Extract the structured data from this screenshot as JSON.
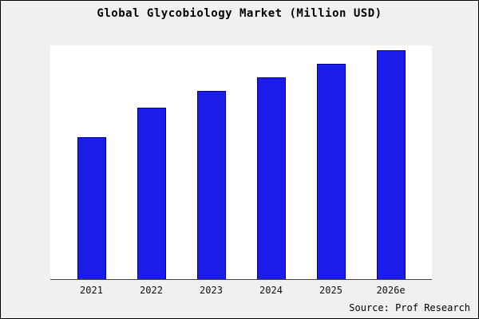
{
  "chart_data": {
    "type": "bar",
    "title": "Global Glycobiology Market (Million USD)",
    "categories": [
      "2021",
      "2022",
      "2023",
      "2024",
      "2025",
      "2026e"
    ],
    "values": [
      62,
      75,
      82,
      88,
      94,
      100
    ],
    "ylim": [
      0,
      102
    ],
    "xlabel": "",
    "ylabel": "",
    "grid": false,
    "legend": false,
    "y_axis_shown": false,
    "bar_fill": "#1c1ce8",
    "bar_border": "#00008b",
    "plot_background": "#ffffff",
    "outer_background": "#f0f0f0"
  },
  "source": {
    "label": "Source: Prof Research"
  }
}
